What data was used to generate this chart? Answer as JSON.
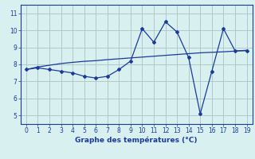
{
  "x_main": [
    0,
    1,
    2,
    3,
    4,
    5,
    6,
    7,
    8,
    9,
    10,
    11,
    12,
    13,
    14,
    15,
    16,
    17,
    18,
    19
  ],
  "y_main": [
    7.7,
    7.8,
    7.7,
    7.6,
    7.5,
    7.3,
    7.2,
    7.3,
    7.7,
    8.2,
    10.1,
    9.3,
    10.5,
    9.9,
    8.4,
    5.1,
    7.6,
    10.1,
    8.8,
    8.8
  ],
  "x_trend": [
    0,
    1,
    2,
    3,
    4,
    5,
    6,
    7,
    8,
    9,
    10,
    11,
    12,
    13,
    14,
    15,
    16,
    17,
    18,
    19
  ],
  "y_trend": [
    7.7,
    7.85,
    7.95,
    8.05,
    8.12,
    8.18,
    8.22,
    8.28,
    8.33,
    8.38,
    8.43,
    8.48,
    8.53,
    8.58,
    8.63,
    8.68,
    8.71,
    8.74,
    8.78,
    8.83
  ],
  "line_color": "#1a3a9c",
  "bg_color": "#d8f0f0",
  "grid_color": "#b0c8c8",
  "xlabel": "Graphe des températures (°C)",
  "xlim": [
    -0.5,
    19.5
  ],
  "ylim": [
    4.5,
    11.5
  ],
  "yticks": [
    5,
    6,
    7,
    8,
    9,
    10,
    11
  ],
  "xticks": [
    0,
    1,
    2,
    3,
    4,
    5,
    6,
    7,
    8,
    9,
    10,
    11,
    12,
    13,
    14,
    15,
    16,
    17,
    18,
    19
  ],
  "tick_fontsize": 5.5,
  "label_fontsize": 6.5
}
